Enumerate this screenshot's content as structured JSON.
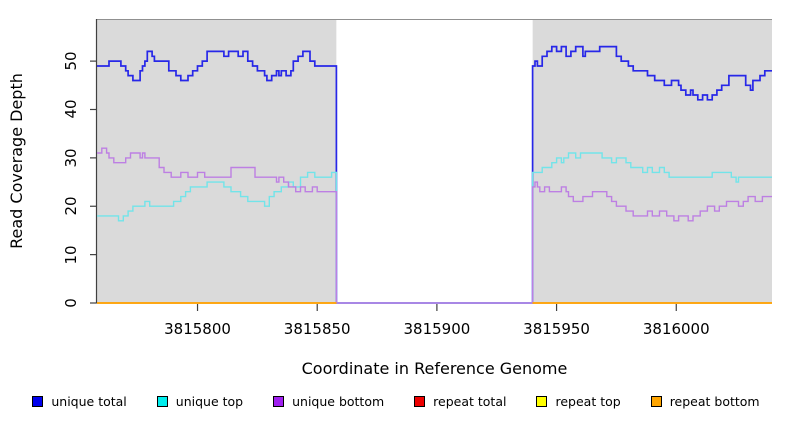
{
  "chart_data": {
    "type": "line",
    "line_style": "step-after",
    "title": "",
    "xlabel": "Coordinate in Reference Genome",
    "ylabel": "Read Coverage Depth",
    "xlim": [
      3815758,
      3816040
    ],
    "ylim": [
      0,
      58.5
    ],
    "x_ticks": [
      3815800,
      3815850,
      3815900,
      3815950,
      3816000
    ],
    "y_ticks": [
      0,
      10,
      20,
      30,
      40,
      50
    ],
    "grid": false,
    "plot_background": "#ffffff",
    "shaded_region_color": "#DADADA",
    "background_regions": [
      {
        "x0": 3815758,
        "x1": 3815858
      },
      {
        "x0": 3815940,
        "x1": 3816040
      }
    ],
    "gap_region": {
      "x0": 3815858,
      "x1": 3815940,
      "note": "white gap where unique coverage drops to 0 and repeat series are not drawn"
    },
    "series": [
      {
        "name": "unique total",
        "color": "#2727E8",
        "width": 1.7,
        "points": [
          [
            3815758,
            49
          ],
          [
            3815763,
            50
          ],
          [
            3815768,
            49
          ],
          [
            3815770,
            48
          ],
          [
            3815771,
            47
          ],
          [
            3815773,
            46
          ],
          [
            3815776,
            48
          ],
          [
            3815777,
            49
          ],
          [
            3815778,
            50
          ],
          [
            3815779,
            52
          ],
          [
            3815781,
            51
          ],
          [
            3815782,
            50
          ],
          [
            3815788,
            48
          ],
          [
            3815791,
            47
          ],
          [
            3815793,
            46
          ],
          [
            3815796,
            47
          ],
          [
            3815798,
            48
          ],
          [
            3815800,
            49
          ],
          [
            3815802,
            50
          ],
          [
            3815804,
            52
          ],
          [
            3815811,
            51
          ],
          [
            3815813,
            52
          ],
          [
            3815817,
            51
          ],
          [
            3815819,
            52
          ],
          [
            3815821,
            50
          ],
          [
            3815823,
            49
          ],
          [
            3815825,
            48
          ],
          [
            3815828,
            47
          ],
          [
            3815829,
            46
          ],
          [
            3815831,
            47
          ],
          [
            3815833,
            48
          ],
          [
            3815834,
            47
          ],
          [
            3815835,
            48
          ],
          [
            3815837,
            47
          ],
          [
            3815839,
            48
          ],
          [
            3815840,
            50
          ],
          [
            3815842,
            51
          ],
          [
            3815844,
            52
          ],
          [
            3815847,
            50
          ],
          [
            3815849,
            49
          ],
          [
            3815858,
            0
          ],
          [
            3815940,
            49
          ],
          [
            3815941,
            50
          ],
          [
            3815942,
            49
          ],
          [
            3815944,
            51
          ],
          [
            3815946,
            52
          ],
          [
            3815948,
            53
          ],
          [
            3815950,
            52
          ],
          [
            3815952,
            53
          ],
          [
            3815954,
            51
          ],
          [
            3815956,
            52
          ],
          [
            3815958,
            53
          ],
          [
            3815961,
            51
          ],
          [
            3815962,
            52
          ],
          [
            3815964,
            52
          ],
          [
            3815968,
            53
          ],
          [
            3815975,
            51
          ],
          [
            3815977,
            50
          ],
          [
            3815980,
            49
          ],
          [
            3815982,
            48
          ],
          [
            3815985,
            48
          ],
          [
            3815988,
            47
          ],
          [
            3815991,
            46
          ],
          [
            3815995,
            45
          ],
          [
            3815998,
            46
          ],
          [
            3816001,
            45
          ],
          [
            3816002,
            44
          ],
          [
            3816004,
            43
          ],
          [
            3816006,
            44
          ],
          [
            3816007,
            43
          ],
          [
            3816009,
            42
          ],
          [
            3816011,
            43
          ],
          [
            3816013,
            42
          ],
          [
            3816015,
            43
          ],
          [
            3816017,
            44
          ],
          [
            3816019,
            45
          ],
          [
            3816022,
            47
          ],
          [
            3816029,
            45
          ],
          [
            3816031,
            44
          ],
          [
            3816032,
            46
          ],
          [
            3816035,
            47
          ],
          [
            3816037,
            48
          ],
          [
            3816040,
            48
          ]
        ]
      },
      {
        "name": "unique top",
        "color": "#72E4E9",
        "width": 1.4,
        "points": [
          [
            3815758,
            18
          ],
          [
            3815767,
            17
          ],
          [
            3815769,
            18
          ],
          [
            3815771,
            19
          ],
          [
            3815773,
            20
          ],
          [
            3815778,
            21
          ],
          [
            3815780,
            20
          ],
          [
            3815790,
            21
          ],
          [
            3815793,
            22
          ],
          [
            3815795,
            23
          ],
          [
            3815797,
            24
          ],
          [
            3815804,
            25
          ],
          [
            3815811,
            24
          ],
          [
            3815814,
            23
          ],
          [
            3815818,
            22
          ],
          [
            3815821,
            21
          ],
          [
            3815828,
            20
          ],
          [
            3815830,
            22
          ],
          [
            3815832,
            23
          ],
          [
            3815835,
            24
          ],
          [
            3815838,
            25
          ],
          [
            3815840,
            24
          ],
          [
            3815843,
            26
          ],
          [
            3815846,
            27
          ],
          [
            3815849,
            26
          ],
          [
            3815856,
            27
          ],
          [
            3815858,
            0
          ],
          [
            3815940,
            27
          ],
          [
            3815944,
            28
          ],
          [
            3815948,
            29
          ],
          [
            3815950,
            30
          ],
          [
            3815952,
            29
          ],
          [
            3815953,
            30
          ],
          [
            3815955,
            31
          ],
          [
            3815958,
            30
          ],
          [
            3815960,
            31
          ],
          [
            3815969,
            30
          ],
          [
            3815973,
            29
          ],
          [
            3815975,
            30
          ],
          [
            3815979,
            29
          ],
          [
            3815981,
            28
          ],
          [
            3815986,
            27
          ],
          [
            3815988,
            28
          ],
          [
            3815990,
            27
          ],
          [
            3815993,
            28
          ],
          [
            3815995,
            27
          ],
          [
            3815997,
            26
          ],
          [
            3816015,
            27
          ],
          [
            3816023,
            26
          ],
          [
            3816025,
            25
          ],
          [
            3816026,
            26
          ],
          [
            3816040,
            26
          ]
        ]
      },
      {
        "name": "unique bottom",
        "color": "#BD7FE3",
        "width": 1.4,
        "points": [
          [
            3815758,
            31
          ],
          [
            3815760,
            32
          ],
          [
            3815762,
            31
          ],
          [
            3815763,
            30
          ],
          [
            3815765,
            29
          ],
          [
            3815770,
            30
          ],
          [
            3815772,
            31
          ],
          [
            3815776,
            30
          ],
          [
            3815777,
            31
          ],
          [
            3815778,
            30
          ],
          [
            3815784,
            28
          ],
          [
            3815786,
            27
          ],
          [
            3815789,
            26
          ],
          [
            3815793,
            27
          ],
          [
            3815796,
            26
          ],
          [
            3815800,
            27
          ],
          [
            3815803,
            26
          ],
          [
            3815814,
            28
          ],
          [
            3815824,
            26
          ],
          [
            3815833,
            25
          ],
          [
            3815834,
            26
          ],
          [
            3815836,
            25
          ],
          [
            3815838,
            24
          ],
          [
            3815841,
            23
          ],
          [
            3815843,
            24
          ],
          [
            3815845,
            23
          ],
          [
            3815848,
            24
          ],
          [
            3815850,
            23
          ],
          [
            3815858,
            0
          ],
          [
            3815940,
            24
          ],
          [
            3815941,
            25
          ],
          [
            3815942,
            24
          ],
          [
            3815943,
            23
          ],
          [
            3815945,
            24
          ],
          [
            3815947,
            23
          ],
          [
            3815952,
            24
          ],
          [
            3815954,
            23
          ],
          [
            3815955,
            22
          ],
          [
            3815957,
            21
          ],
          [
            3815961,
            22
          ],
          [
            3815965,
            23
          ],
          [
            3815971,
            22
          ],
          [
            3815973,
            21
          ],
          [
            3815975,
            20
          ],
          [
            3815979,
            19
          ],
          [
            3815982,
            18
          ],
          [
            3815988,
            19
          ],
          [
            3815990,
            18
          ],
          [
            3815993,
            19
          ],
          [
            3815996,
            18
          ],
          [
            3815999,
            17
          ],
          [
            3816001,
            18
          ],
          [
            3816005,
            17
          ],
          [
            3816007,
            18
          ],
          [
            3816010,
            19
          ],
          [
            3816013,
            20
          ],
          [
            3816016,
            19
          ],
          [
            3816018,
            20
          ],
          [
            3816021,
            21
          ],
          [
            3816026,
            20
          ],
          [
            3816028,
            21
          ],
          [
            3816030,
            22
          ],
          [
            3816033,
            21
          ],
          [
            3816036,
            22
          ],
          [
            3816040,
            22
          ]
        ]
      },
      {
        "name": "repeat total",
        "color": "#DD0000",
        "width": 1.5,
        "points": [
          [
            3815758,
            0
          ],
          [
            3815858,
            null
          ],
          [
            3815940,
            0
          ],
          [
            3816040,
            0
          ]
        ]
      },
      {
        "name": "repeat top",
        "color": "#F5F500",
        "width": 1.5,
        "points": [
          [
            3815758,
            0
          ],
          [
            3815858,
            null
          ],
          [
            3815940,
            0
          ],
          [
            3816040,
            0
          ]
        ]
      },
      {
        "name": "repeat bottom",
        "color": "#FFA510",
        "width": 1.7,
        "points": [
          [
            3815758,
            0
          ],
          [
            3815858,
            null
          ],
          [
            3815940,
            0
          ],
          [
            3816040,
            0
          ]
        ]
      }
    ],
    "legend": {
      "position": "bottom",
      "entries": [
        {
          "label": "unique total",
          "color": "#0000EE"
        },
        {
          "label": "unique top",
          "color": "#00EEEE"
        },
        {
          "label": "unique bottom",
          "color": "#A020F0"
        },
        {
          "label": "repeat total",
          "color": "#EE0000"
        },
        {
          "label": "repeat top",
          "color": "#FFFF00"
        },
        {
          "label": "repeat bottom",
          "color": "#FFA500"
        }
      ]
    }
  }
}
